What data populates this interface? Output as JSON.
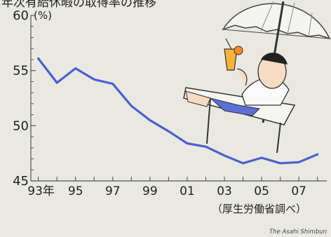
{
  "chart_data": {
    "type": "line",
    "title": "",
    "ylabel": "(%)",
    "xlabel": "",
    "ylim": [
      45,
      60
    ],
    "yticks": [
      45,
      50,
      55,
      60
    ],
    "x_ticks": [
      "93年",
      "95",
      "97",
      "99",
      "01",
      "03",
      "05",
      "07"
    ],
    "x_tick_years": [
      1993,
      1995,
      1997,
      1999,
      2001,
      2003,
      2005,
      2007
    ],
    "xlim": [
      1992.6,
      2008.5
    ],
    "series": [
      {
        "values": [
          {
            "x": 1993.0,
            "y": 56.1
          },
          {
            "x": 1994.0,
            "y": 53.9
          },
          {
            "x": 1995.0,
            "y": 55.2
          },
          {
            "x": 1996.0,
            "y": 54.2
          },
          {
            "x": 1997.0,
            "y": 53.8
          },
          {
            "x": 1998.0,
            "y": 51.8
          },
          {
            "x": 1999.0,
            "y": 50.5
          },
          {
            "x": 2000.0,
            "y": 49.5
          },
          {
            "x": 2001.0,
            "y": 48.4
          },
          {
            "x": 2002.0,
            "y": 48.1
          },
          {
            "x": 2003.0,
            "y": 47.3
          },
          {
            "x": 2004.0,
            "y": 46.6
          },
          {
            "x": 2005.0,
            "y": 47.1
          },
          {
            "x": 2006.0,
            "y": 46.6
          },
          {
            "x": 2007.0,
            "y": 46.7
          },
          {
            "x": 2008.0,
            "y": 47.4
          }
        ]
      }
    ],
    "source_note": "（厚生労働省調べ）",
    "colors": {
      "line": "#4a5fd0",
      "axis": "#555555",
      "background": "#e9e9e2"
    }
  },
  "credit": "The Asahi Shimbun",
  "header_fragment": "年次有給休暇の取得率の推移"
}
